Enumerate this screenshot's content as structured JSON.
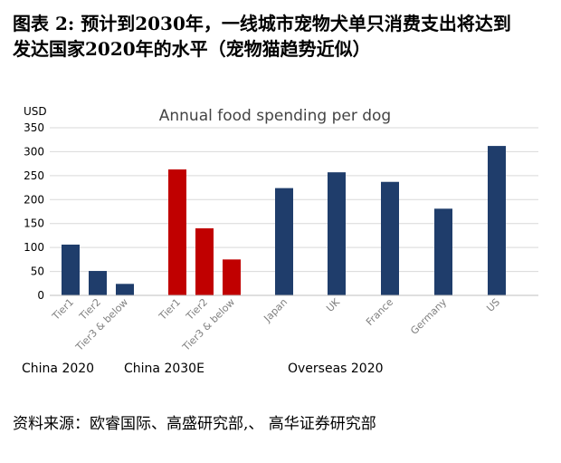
{
  "figure": {
    "title_line1": "图表 2: 预计到2030年，一线城市宠物犬单只消费支出将达到",
    "title_line2": "发达国家2020年的水平（宠物猫趋势近似）",
    "source": "资料来源：欧睿国际、高盛研究部,、 高华证券研究部"
  },
  "chart_data": {
    "type": "bar",
    "title": "Annual food spending per dog",
    "ylabel": "USD",
    "ylim": [
      0,
      350
    ],
    "yticks": [
      0,
      50,
      100,
      150,
      200,
      250,
      300,
      350
    ],
    "grid": true,
    "categories": [
      "Tier1",
      "Tier2",
      "Tier3 & below",
      "Tier1",
      "Tier2",
      "Tier3 & below",
      "Japan",
      "UK",
      "France",
      "Germany",
      "US"
    ],
    "values": [
      106,
      51,
      24,
      263,
      140,
      75,
      224,
      257,
      237,
      181,
      312
    ],
    "groups": [
      {
        "label": "China 2020",
        "categories": [
          0,
          1,
          2
        ],
        "color": "#1f3d6b"
      },
      {
        "label": "China 2030E",
        "categories": [
          3,
          4,
          5
        ],
        "color": "#c00000"
      },
      {
        "label": "Overseas 2020",
        "categories": [
          6,
          7,
          8,
          9,
          10
        ],
        "color": "#1f3d6b"
      }
    ]
  }
}
